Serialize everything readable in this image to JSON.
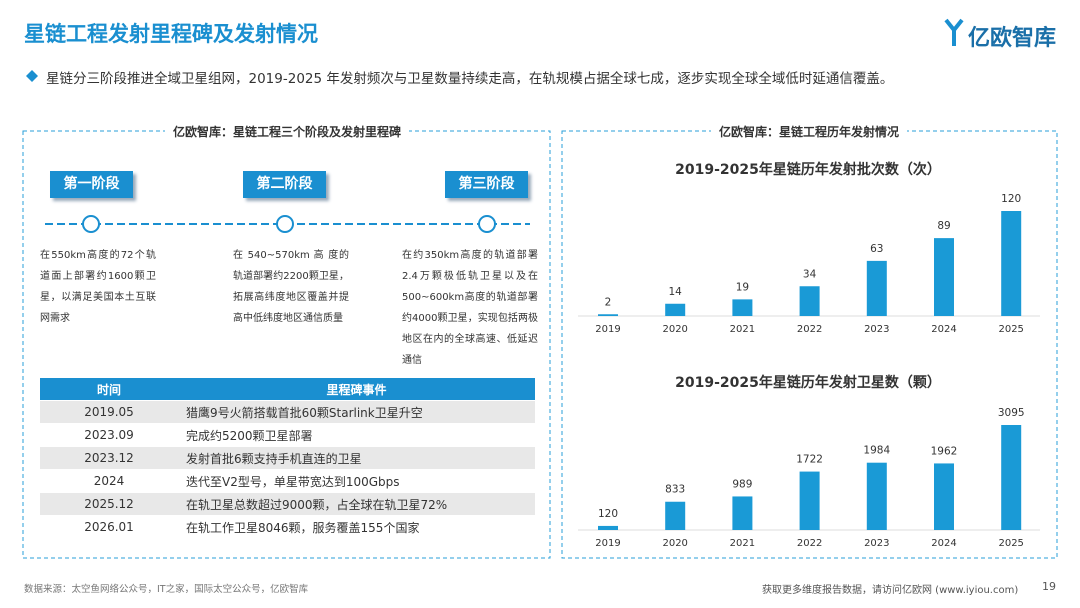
{
  "header": {
    "title": "星链工程发射里程碑及发射情况",
    "brand": "亿欧智库",
    "summary": "星链分三阶段推进全域卫星组网，2019-2025 年发射频次与卫星数量持续走高，在轨规模占据全球七成，逐步实现全球全域低时延通信覆盖。"
  },
  "left_panel": {
    "title": "亿欧智库：星链工程三个阶段及发射里程碑",
    "stages": [
      {
        "label": "第一阶段",
        "description": "在550km高度的72个轨道面上部署约1600颗卫星，以满足美国本土互联网需求"
      },
      {
        "label": "第二阶段",
        "description": "在 540~570km 高 度的轨道部署约2200颗卫星，拓展高纬度地区覆盖并提高中低纬度地区通信质量"
      },
      {
        "label": "第三阶段",
        "description": "在约350km高度的轨道部署2.4万颗极低轨卫星以及在500~600km高度的轨道部署约4000颗卫星，实现包括两极地区在内的全球高速、低延迟通信"
      }
    ],
    "table": {
      "columns": [
        "时间",
        "里程碑事件"
      ],
      "rows": [
        [
          "2019.05",
          "猎鹰9号火箭搭载首批60颗Starlink卫星升空"
        ],
        [
          "2023.09",
          "完成约5200颗卫星部署"
        ],
        [
          "2023.12",
          "发射首批6颗支持手机直连的卫星"
        ],
        [
          "2024",
          "迭代至V2型号，单星带宽达到100Gbps"
        ],
        [
          "2025.12",
          "在轨卫星总数超过9000颗，占全球在轨卫星72%"
        ],
        [
          "2026.01",
          "在轨工作卫星8046颗，服务覆盖155个国家"
        ]
      ]
    }
  },
  "right_panel": {
    "title": "亿欧智库：星链工程历年发射情况"
  },
  "chart_data": [
    {
      "type": "bar",
      "title": "2019-2025年星链历年发射批次数（次）",
      "categories": [
        "2019",
        "2020",
        "2021",
        "2022",
        "2023",
        "2024",
        "2025"
      ],
      "values": [
        2,
        14,
        19,
        34,
        63,
        89,
        120
      ],
      "color": "#1a9ad6"
    },
    {
      "type": "bar",
      "title": "2019-2025年星链历年发射卫星数（颗）",
      "categories": [
        "2019",
        "2020",
        "2021",
        "2022",
        "2023",
        "2024",
        "2025"
      ],
      "values": [
        120,
        833,
        989,
        1722,
        1984,
        1962,
        3095
      ],
      "color": "#1a9ad6"
    }
  ],
  "footer": {
    "source": "数据来源：太空鱼网络公众号，IT之家，国际太空公众号，亿欧智库",
    "note": "获取更多维度报告数据，请访问亿欧网 (www.iyiou.com)",
    "page": "19"
  }
}
